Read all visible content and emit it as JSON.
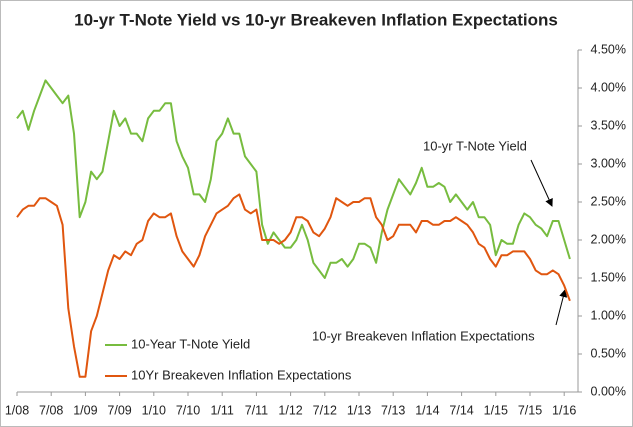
{
  "chart_data": {
    "type": "line",
    "title": "10-yr T-Note Yield vs 10-yr Breakeven Inflation Expectations",
    "categories": [
      "1/08",
      null,
      null,
      null,
      null,
      null,
      "7/08",
      null,
      null,
      null,
      null,
      null,
      "1/09",
      null,
      null,
      null,
      null,
      null,
      "7/09",
      null,
      null,
      null,
      null,
      null,
      "1/10",
      null,
      null,
      null,
      null,
      null,
      "7/10",
      null,
      null,
      null,
      null,
      null,
      "1/11",
      null,
      null,
      null,
      null,
      null,
      "7/11",
      null,
      null,
      null,
      null,
      null,
      "1/12",
      null,
      null,
      null,
      null,
      null,
      "7/12",
      null,
      null,
      null,
      null,
      null,
      "1/13",
      null,
      null,
      null,
      null,
      null,
      "7/13",
      null,
      null,
      null,
      null,
      null,
      "1/14",
      null,
      null,
      null,
      null,
      null,
      "7/14",
      null,
      null,
      null,
      null,
      null,
      "1/15",
      null,
      null,
      null,
      null,
      null,
      "7/15",
      null,
      null,
      null,
      null,
      null,
      "1/16",
      null
    ],
    "series": [
      {
        "name": "10-Year T-Note Yield",
        "color": "#77bc3f",
        "values": [
          3.6,
          3.7,
          3.45,
          3.7,
          3.9,
          4.1,
          4.0,
          3.9,
          3.8,
          3.9,
          3.4,
          2.3,
          2.5,
          2.9,
          2.8,
          2.9,
          3.3,
          3.7,
          3.5,
          3.6,
          3.4,
          3.4,
          3.3,
          3.6,
          3.7,
          3.7,
          3.8,
          3.8,
          3.3,
          3.1,
          2.95,
          2.6,
          2.6,
          2.5,
          2.8,
          3.3,
          3.4,
          3.6,
          3.4,
          3.4,
          3.1,
          3.0,
          2.9,
          2.2,
          1.95,
          2.1,
          2.0,
          1.9,
          1.9,
          2.0,
          2.2,
          2.0,
          1.7,
          1.6,
          1.5,
          1.7,
          1.7,
          1.75,
          1.65,
          1.75,
          1.95,
          1.95,
          1.9,
          1.7,
          2.1,
          2.4,
          2.6,
          2.8,
          2.7,
          2.6,
          2.75,
          2.95,
          2.7,
          2.7,
          2.75,
          2.7,
          2.5,
          2.6,
          2.5,
          2.4,
          2.5,
          2.3,
          2.3,
          2.2,
          1.8,
          2.0,
          1.95,
          1.95,
          2.2,
          2.35,
          2.3,
          2.2,
          2.15,
          2.05,
          2.25,
          2.25,
          2.0,
          1.75
        ]
      },
      {
        "name": "10Yr Breakeven Inflation Expectations",
        "color": "#e0560f",
        "values": [
          2.3,
          2.4,
          2.45,
          2.45,
          2.55,
          2.55,
          2.5,
          2.45,
          2.2,
          1.1,
          0.6,
          0.2,
          0.2,
          0.8,
          1.0,
          1.3,
          1.6,
          1.8,
          1.75,
          1.85,
          1.8,
          1.95,
          2.0,
          2.25,
          2.35,
          2.3,
          2.3,
          2.35,
          2.05,
          1.85,
          1.75,
          1.65,
          1.8,
          2.05,
          2.2,
          2.35,
          2.4,
          2.45,
          2.55,
          2.6,
          2.4,
          2.35,
          2.4,
          2.0,
          2.0,
          2.0,
          1.95,
          2.0,
          2.1,
          2.3,
          2.3,
          2.25,
          2.1,
          2.05,
          2.15,
          2.3,
          2.55,
          2.5,
          2.45,
          2.5,
          2.5,
          2.55,
          2.55,
          2.3,
          2.2,
          2.0,
          2.05,
          2.2,
          2.2,
          2.2,
          2.1,
          2.25,
          2.25,
          2.2,
          2.2,
          2.25,
          2.25,
          2.3,
          2.25,
          2.2,
          2.1,
          1.95,
          1.9,
          1.75,
          1.65,
          1.8,
          1.8,
          1.85,
          1.85,
          1.85,
          1.75,
          1.6,
          1.55,
          1.55,
          1.6,
          1.55,
          1.4,
          1.2
        ]
      }
    ],
    "ylim": [
      0,
      4.5
    ],
    "yticks": [
      {
        "value": 0,
        "label": "0.00%"
      },
      {
        "value": 0.5,
        "label": "0.50%"
      },
      {
        "value": 1,
        "label": "1.00%"
      },
      {
        "value": 1.5,
        "label": "1.50%"
      },
      {
        "value": 2,
        "label": "2.00%"
      },
      {
        "value": 2.5,
        "label": "2.50%"
      },
      {
        "value": 3,
        "label": "3.00%"
      },
      {
        "value": 3.5,
        "label": "3.50%"
      },
      {
        "value": 4,
        "label": "4.00%"
      },
      {
        "value": 4.5,
        "label": "4.50%"
      }
    ],
    "y_axis_side": "right",
    "grid": false,
    "legend": "lower left",
    "annotations": [
      {
        "text": "10-yr T-Note Yield"
      },
      {
        "text": "10-yr Breakeven Inflation Expectations"
      }
    ]
  }
}
